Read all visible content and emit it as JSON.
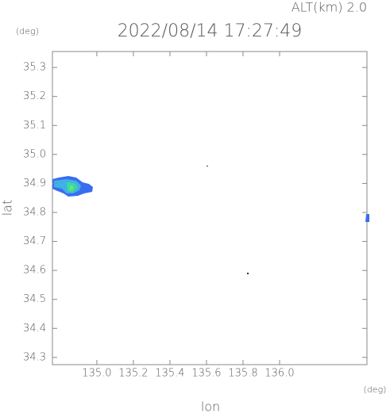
{
  "chart_data": {
    "type": "map",
    "altitude_label": "ALT(km) 2.0",
    "title": "2022/08/14 17:27:49",
    "y_unit": "(deg)",
    "x_unit": "(deg)",
    "xlabel": "lon",
    "ylabel": "lat",
    "xlim": [
      134.757,
      136.478
    ],
    "ylim": [
      34.275,
      35.355
    ],
    "xticks": [
      {
        "value": 135.0,
        "label": "135.0"
      },
      135.2,
      135.4,
      135.6,
      135.8,
      {
        "value": 136.0,
        "label": "136.0"
      }
    ],
    "yticks": [
      34.3,
      34.4,
      34.5,
      34.6,
      34.7,
      34.8,
      34.9,
      {
        "value": 35.0,
        "label": "35.0"
      },
      35.1,
      35.2,
      35.3
    ]
  }
}
